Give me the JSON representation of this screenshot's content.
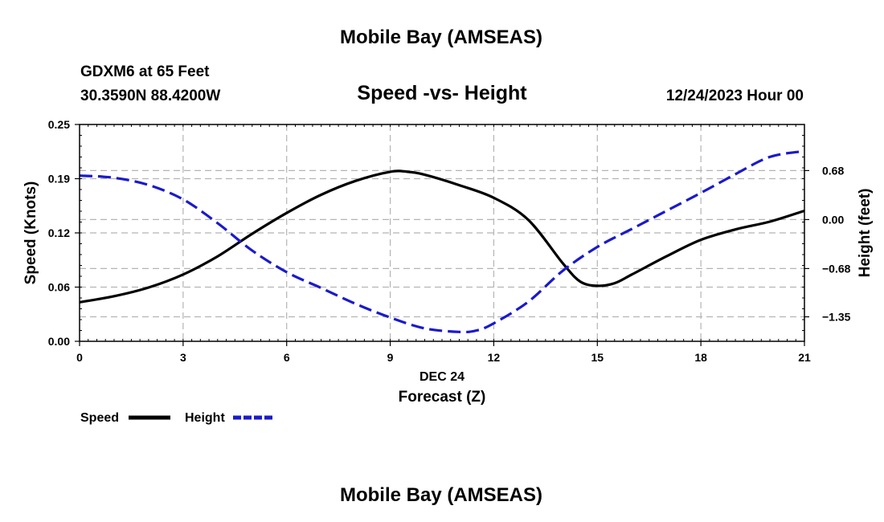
{
  "header": {
    "title": "Mobile Bay (AMSEAS)",
    "station": "GDXM6 at 65 Feet",
    "coords": "30.3590N  88.4200W",
    "chart_title": "Speed -vs- Height",
    "datetime": "12/24/2023 Hour 00"
  },
  "footer": {
    "title": "Mobile Bay (AMSEAS)"
  },
  "colors": {
    "speed": "#000000",
    "height": "#1a1acc",
    "grid": "#b4b4b4"
  },
  "chart_data": {
    "type": "line",
    "title": "Speed -vs- Height",
    "xlabel": "Forecast (Z)",
    "xlabel_date": "DEC 24",
    "ylabel": "Speed (Knots)",
    "y2label": "Height (feet)",
    "xlim": [
      0,
      21
    ],
    "ylim": [
      0,
      0.25
    ],
    "y2lim": [
      -1.69,
      1.32
    ],
    "x_ticks": [
      0,
      3,
      6,
      9,
      12,
      15,
      18,
      21
    ],
    "x_tick_labels": [
      "0",
      "3",
      "6",
      "9",
      "12",
      "15",
      "18",
      "21"
    ],
    "y_ticks": [
      0,
      0.0625,
      0.125,
      0.1875,
      0.25
    ],
    "y_tick_labels": [
      "0.00",
      "0.06",
      "0.12",
      "0.19",
      "0.25"
    ],
    "y2_ticks": [
      0.68,
      0.0,
      -0.68,
      -1.35
    ],
    "y2_tick_labels": [
      "0.68",
      "0.00",
      "−0.68",
      "−1.35"
    ],
    "grid": true,
    "legend": {
      "position": "bottom-left",
      "entries": [
        "Speed",
        "Height"
      ]
    },
    "series": [
      {
        "name": "Speed",
        "axis": "left",
        "style": "solid",
        "x": [
          0,
          1,
          2,
          3,
          4,
          5,
          6,
          7,
          8,
          9,
          9.5,
          10,
          11,
          12,
          13,
          14,
          14.5,
          15,
          15.5,
          16,
          17,
          18,
          19,
          20,
          21
        ],
        "values": [
          0.045,
          0.052,
          0.062,
          0.077,
          0.098,
          0.124,
          0.148,
          0.169,
          0.185,
          0.1955,
          0.1955,
          0.192,
          0.18,
          0.1655,
          0.14,
          0.09,
          0.069,
          0.064,
          0.067,
          0.077,
          0.098,
          0.117,
          0.129,
          0.138,
          0.1505
        ]
      },
      {
        "name": "Height",
        "axis": "right",
        "style": "dashed",
        "x": [
          0,
          1,
          2,
          3,
          4,
          5,
          6,
          7,
          8,
          9,
          10,
          11,
          11.5,
          12,
          13,
          14,
          15,
          16,
          17,
          18,
          19,
          20,
          21
        ],
        "values": [
          0.61,
          0.58,
          0.48,
          0.28,
          -0.05,
          -0.43,
          -0.73,
          -0.95,
          -1.17,
          -1.36,
          -1.51,
          -1.56,
          -1.54,
          -1.44,
          -1.14,
          -0.71,
          -0.38,
          -0.13,
          0.12,
          0.37,
          0.63,
          0.87,
          0.95
        ]
      }
    ]
  }
}
